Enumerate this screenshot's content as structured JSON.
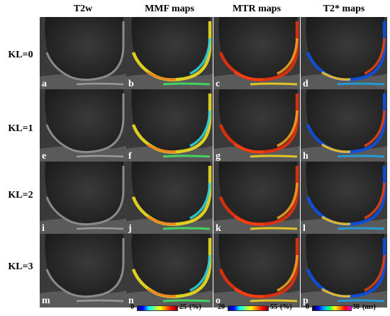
{
  "columns": [
    "T2w",
    "MMF maps",
    "MTR maps",
    "T2* maps"
  ],
  "rows": [
    {
      "label": "KL=0",
      "letters": [
        "a",
        "b",
        "c",
        "d"
      ]
    },
    {
      "label": "KL=1",
      "letters": [
        "e",
        "f",
        "g",
        "h"
      ]
    },
    {
      "label": "KL=2",
      "letters": [
        "i",
        "j",
        "k",
        "l"
      ]
    },
    {
      "label": "KL=3",
      "letters": [
        "m",
        "n",
        "o",
        "p"
      ]
    }
  ],
  "scales": {
    "mmf": {
      "min": "0",
      "max": "25",
      "unit": "(%)"
    },
    "mtr": {
      "min": "20",
      "max": "55",
      "unit": "(%)"
    },
    "t2star": {
      "min": "0",
      "max": "30",
      "unit": "(ms)"
    }
  },
  "colors": {
    "background": "#ffffff",
    "mri_gray": "#2a2a2a",
    "cartilage_warm": "#e8401c",
    "cartilage_mid": "#f0d020",
    "cartilage_cool": "#20b8e0"
  }
}
